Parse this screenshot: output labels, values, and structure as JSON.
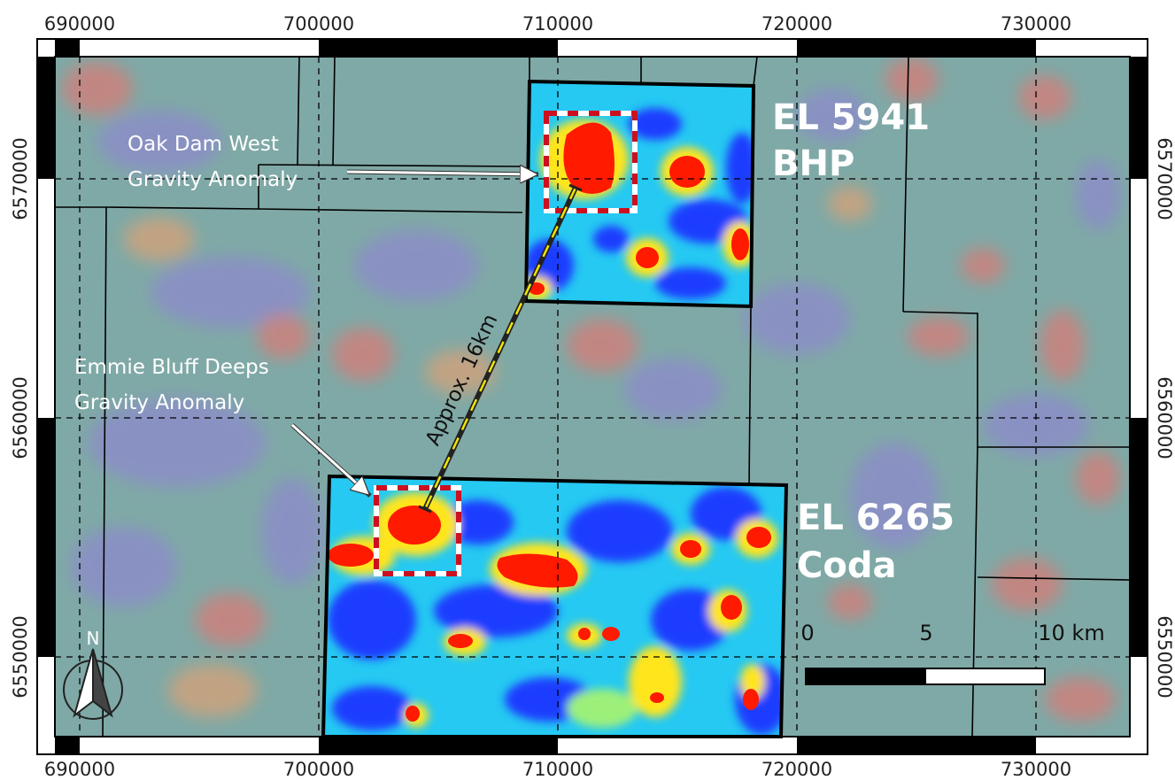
{
  "grid": {
    "eastings": [
      "690000",
      "700000",
      "710000",
      "720000",
      "730000"
    ],
    "northings": [
      "6570000",
      "6560000",
      "6550000"
    ]
  },
  "tenements": [
    {
      "id": "EL 5941",
      "holder": "BHP"
    },
    {
      "id": "EL 6265",
      "holder": "Coda"
    }
  ],
  "anomalies": [
    {
      "line1": "Oak Dam West",
      "line2": "Gravity Anomaly"
    },
    {
      "line1": "Emmie Bluff Deeps",
      "line2": "Gravity Anomaly"
    }
  ],
  "distance_label": "Approx. 16km",
  "scale_bar": {
    "ticks": [
      "0",
      "5"
    ],
    "end_label": "10 km"
  },
  "north_arrow": {
    "label": "N"
  },
  "colors": {
    "background_map": "#7fa9a6",
    "high_gravity": "#ff1a00",
    "low_gravity": "#0026ff",
    "anomaly_box": "#cc1020"
  }
}
